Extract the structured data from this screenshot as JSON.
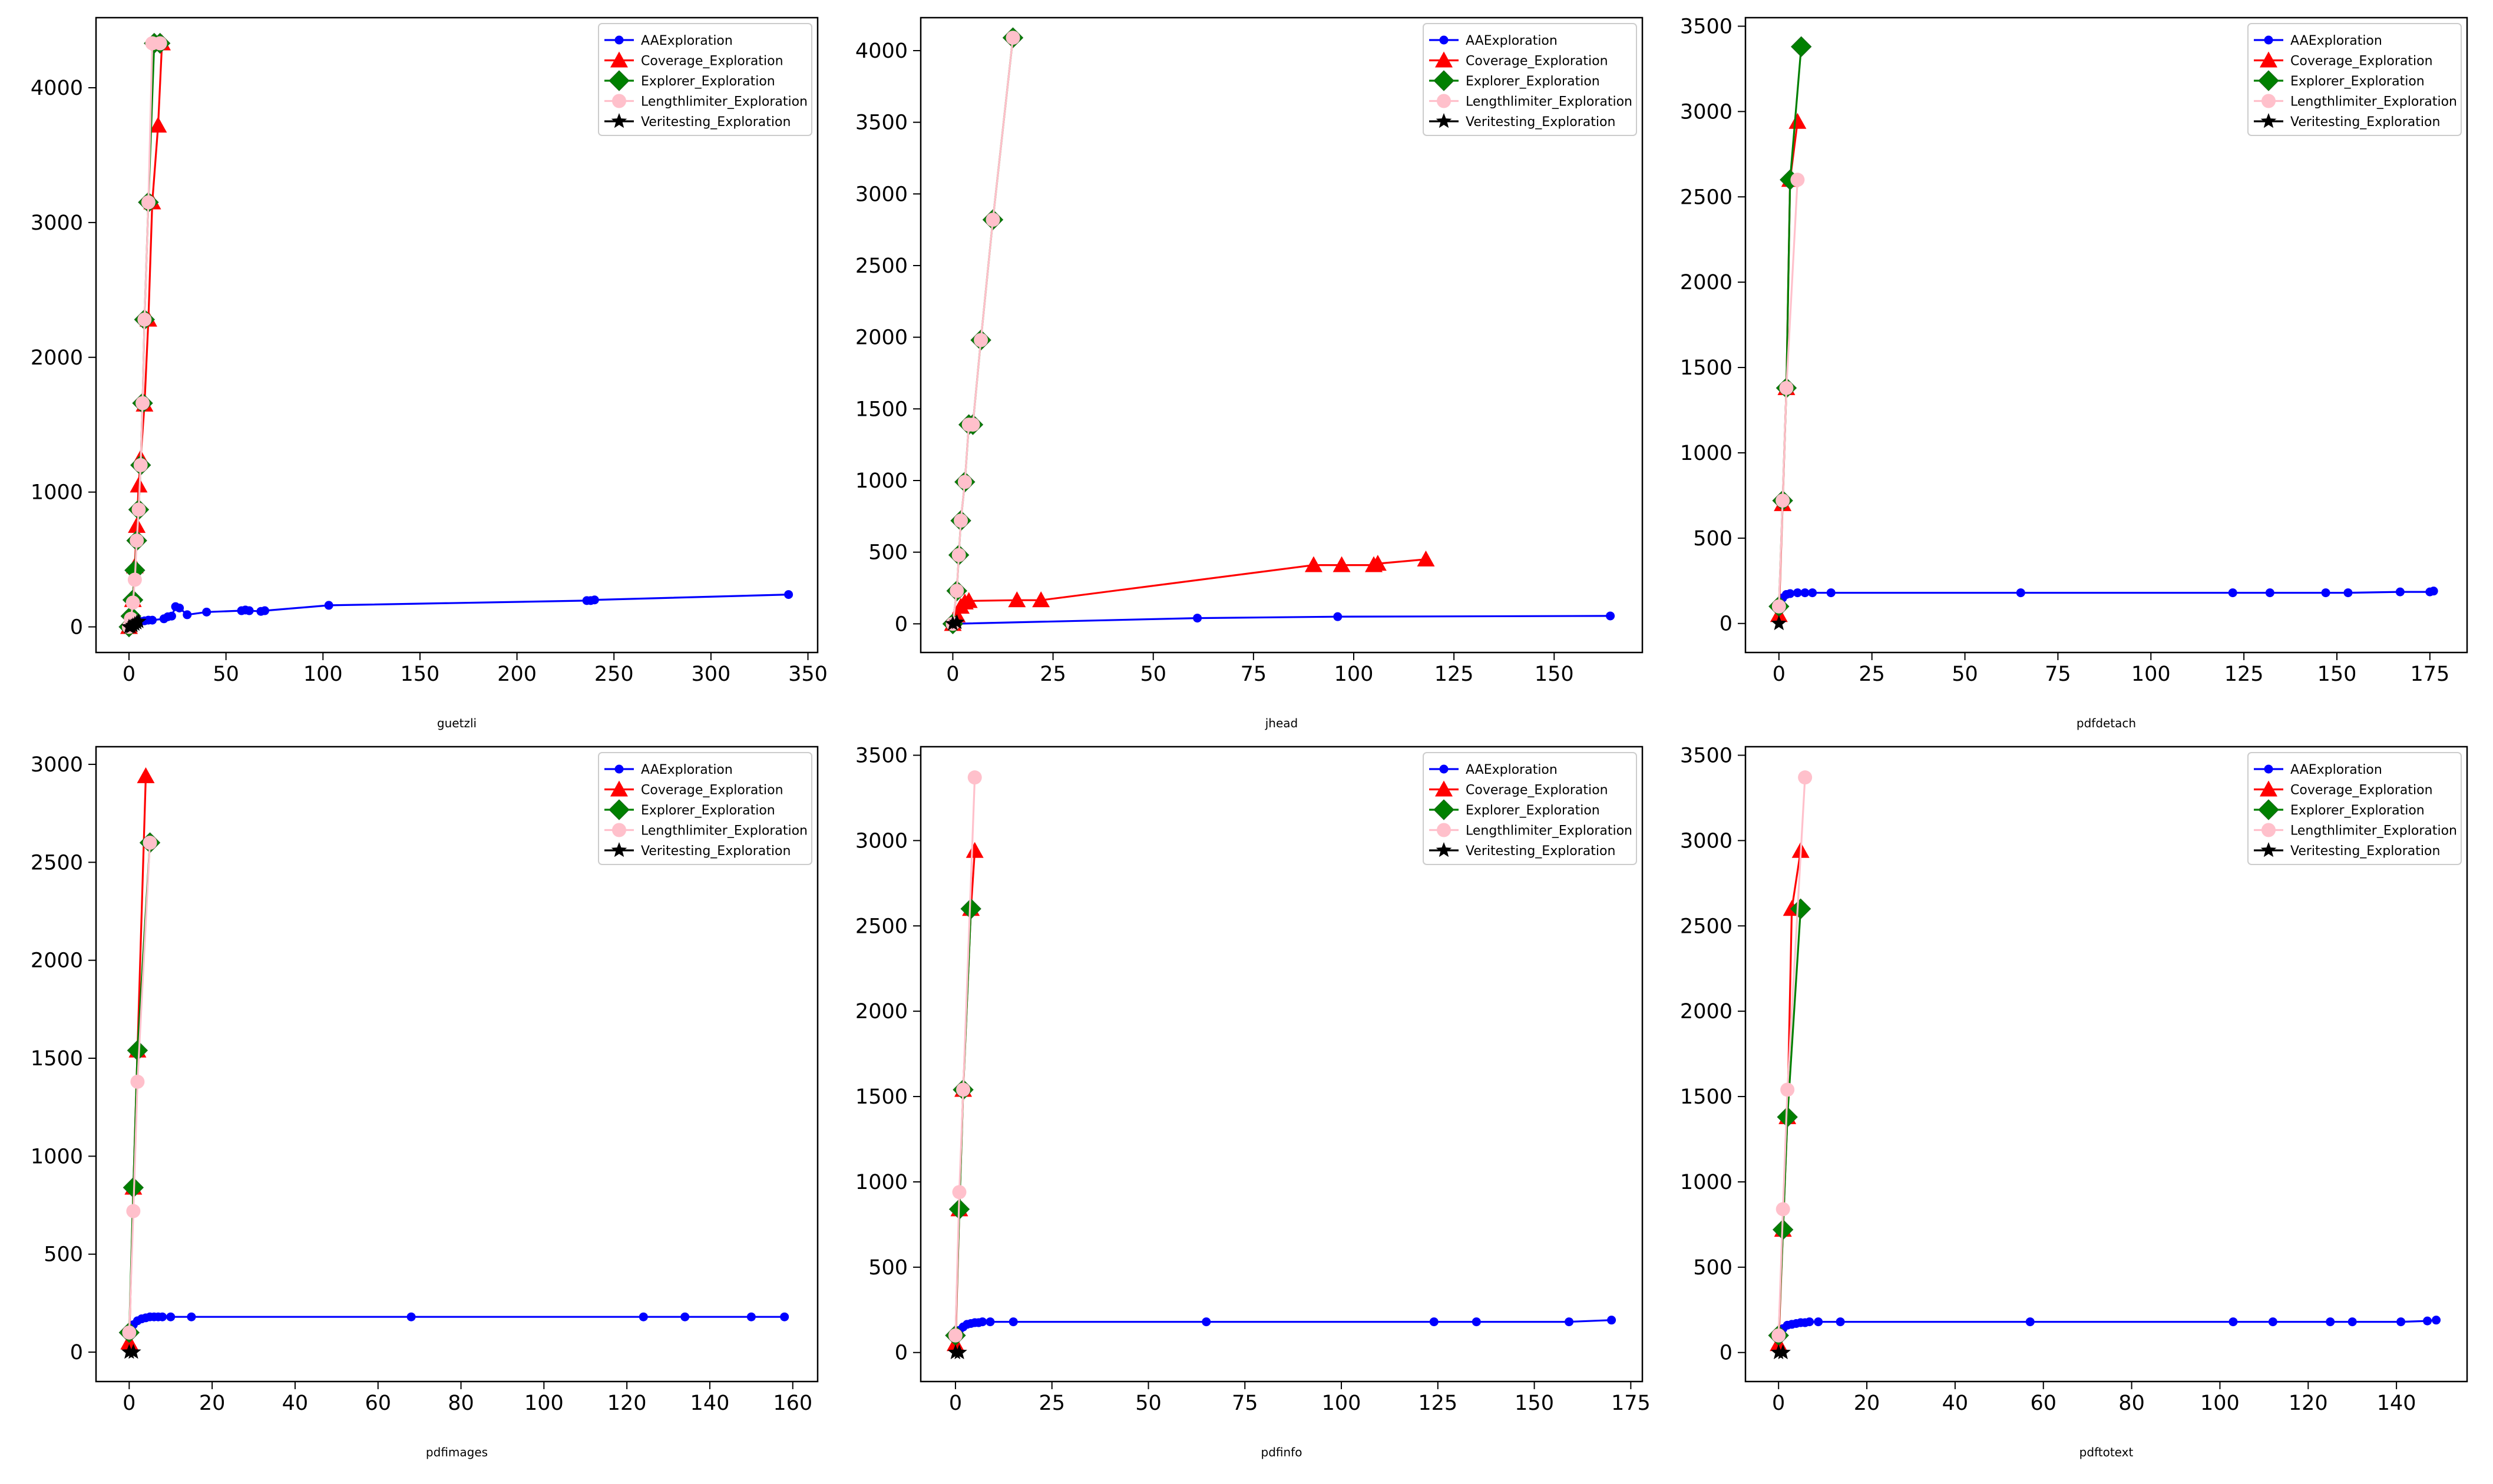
{
  "legend_labels": [
    "AAExploration",
    "Coverage_Exploration",
    "Explorer_Exploration",
    "Lengthlimiter_Exploration",
    "Veritesting_Exploration"
  ],
  "series_styles": [
    {
      "name": "AAExploration",
      "color": "#0000ff",
      "marker": "dot"
    },
    {
      "name": "Coverage_Exploration",
      "color": "#ff0000",
      "marker": "triangle"
    },
    {
      "name": "Explorer_Exploration",
      "color": "#008000",
      "marker": "diamond"
    },
    {
      "name": "Lengthlimiter_Exploration",
      "color": "#ffc0cb",
      "marker": "circle"
    },
    {
      "name": "Veritesting_Exploration",
      "color": "#000000",
      "marker": "star"
    }
  ],
  "chart_data": [
    {
      "type": "line",
      "xlabel": "guetzli",
      "ylabel": "",
      "xlim": [
        -17,
        355
      ],
      "ylim": [
        -190,
        4520
      ],
      "xticks": [
        0,
        50,
        100,
        150,
        200,
        250,
        300,
        350
      ],
      "yticks": [
        0,
        1000,
        2000,
        3000,
        4000
      ],
      "series": [
        {
          "name": "AAExploration",
          "x": [
            0,
            1,
            2,
            3,
            4,
            5,
            6,
            8,
            10,
            12,
            18,
            20,
            22,
            24,
            26,
            30,
            40,
            58,
            60,
            62,
            68,
            70,
            103,
            236,
            238,
            240,
            340
          ],
          "y": [
            0,
            5,
            10,
            20,
            30,
            35,
            40,
            45,
            50,
            50,
            60,
            75,
            80,
            150,
            140,
            90,
            110,
            120,
            125,
            120,
            115,
            120,
            160,
            195,
            195,
            200,
            240
          ]
        },
        {
          "name": "Coverage_Exploration",
          "x": [
            0,
            1,
            2,
            3,
            4,
            5,
            6,
            8,
            10,
            12,
            15,
            17
          ],
          "y": [
            0,
            50,
            200,
            450,
            750,
            1050,
            1250,
            1650,
            2280,
            3150,
            3720,
            4330
          ]
        },
        {
          "name": "Explorer_Exploration",
          "x": [
            0,
            1,
            2,
            3,
            4,
            5,
            6,
            7,
            8,
            10,
            13,
            16
          ],
          "y": [
            0,
            80,
            200,
            420,
            640,
            870,
            1200,
            1660,
            2280,
            3150,
            4330,
            4330
          ]
        },
        {
          "name": "Lengthlimiter_Exploration",
          "x": [
            0,
            1,
            2,
            3,
            4,
            5,
            6,
            7,
            8,
            10,
            12,
            16
          ],
          "y": [
            0,
            60,
            180,
            350,
            640,
            870,
            1200,
            1660,
            2280,
            3150,
            4330,
            4330
          ]
        },
        {
          "name": "Veritesting_Exploration",
          "x": [
            0,
            1,
            2,
            3,
            4,
            5
          ],
          "y": [
            0,
            0,
            10,
            20,
            30,
            40
          ]
        }
      ]
    },
    {
      "type": "line",
      "xlabel": "jhead",
      "ylabel": "",
      "xlim": [
        -8,
        172
      ],
      "ylim": [
        -200,
        4230
      ],
      "xticks": [
        0,
        25,
        50,
        75,
        100,
        125,
        150
      ],
      "yticks": [
        0,
        500,
        1000,
        1500,
        2000,
        2500,
        3000,
        3500,
        4000
      ],
      "series": [
        {
          "name": "AAExploration",
          "x": [
            0,
            61,
            96,
            164
          ],
          "y": [
            0,
            40,
            50,
            55
          ]
        },
        {
          "name": "Coverage_Exploration",
          "x": [
            0,
            1,
            2,
            3,
            4,
            16,
            22,
            90,
            97,
            105,
            106,
            118
          ],
          "y": [
            0,
            60,
            120,
            150,
            160,
            165,
            165,
            410,
            410,
            410,
            420,
            450
          ]
        },
        {
          "name": "Explorer_Exploration",
          "x": [
            0,
            1,
            1.5,
            2,
            3,
            4,
            5,
            7,
            10,
            15
          ],
          "y": [
            0,
            230,
            480,
            720,
            990,
            1390,
            1390,
            1980,
            2820,
            4090
          ]
        },
        {
          "name": "Lengthlimiter_Exploration",
          "x": [
            0,
            1,
            1.5,
            2,
            3,
            4,
            5,
            7,
            10,
            15
          ],
          "y": [
            0,
            230,
            480,
            720,
            990,
            1390,
            1390,
            1980,
            2820,
            4090
          ]
        },
        {
          "name": "Veritesting_Exploration",
          "x": [
            0,
            1
          ],
          "y": [
            0,
            10
          ]
        }
      ]
    },
    {
      "type": "line",
      "xlabel": "pdfdetach",
      "ylabel": "",
      "xlim": [
        -9,
        185
      ],
      "ylim": [
        -170,
        3550
      ],
      "xticks": [
        0,
        25,
        50,
        75,
        100,
        125,
        150,
        175
      ],
      "yticks": [
        0,
        500,
        1000,
        1500,
        2000,
        2500,
        3000,
        3500
      ],
      "series": [
        {
          "name": "AAExploration",
          "x": [
            0,
            1,
            2,
            3,
            5,
            7,
            9,
            14,
            65,
            122,
            132,
            147,
            153,
            167,
            175,
            176
          ],
          "y": [
            100,
            150,
            170,
            175,
            180,
            180,
            180,
            180,
            180,
            180,
            180,
            180,
            180,
            185,
            185,
            190
          ]
        },
        {
          "name": "Coverage_Exploration",
          "x": [
            0,
            1,
            2,
            3,
            5
          ],
          "y": [
            50,
            700,
            1380,
            2600,
            2940
          ]
        },
        {
          "name": "Explorer_Exploration",
          "x": [
            0,
            1,
            2,
            3,
            6
          ],
          "y": [
            100,
            720,
            1380,
            2600,
            3380
          ]
        },
        {
          "name": "Lengthlimiter_Exploration",
          "x": [
            0,
            1,
            2,
            5
          ],
          "y": [
            100,
            720,
            1380,
            2600
          ]
        },
        {
          "name": "Veritesting_Exploration",
          "x": [
            0
          ],
          "y": [
            0
          ]
        }
      ]
    },
    {
      "type": "line",
      "xlabel": "pdfimages",
      "ylabel": "",
      "xlim": [
        -8,
        166
      ],
      "ylim": [
        -150,
        3090
      ],
      "xticks": [
        0,
        20,
        40,
        60,
        80,
        100,
        120,
        140,
        160
      ],
      "yticks": [
        0,
        500,
        1000,
        1500,
        2000,
        2500,
        3000
      ],
      "series": [
        {
          "name": "AAExploration",
          "x": [
            0,
            1,
            2,
            3,
            4,
            5,
            6,
            7,
            8,
            10,
            15,
            68,
            124,
            134,
            150,
            158
          ],
          "y": [
            100,
            140,
            160,
            170,
            175,
            180,
            180,
            180,
            180,
            180,
            180,
            180,
            180,
            180,
            180,
            180
          ]
        },
        {
          "name": "Coverage_Exploration",
          "x": [
            0,
            1,
            2,
            4
          ],
          "y": [
            50,
            840,
            1540,
            2940
          ]
        },
        {
          "name": "Explorer_Exploration",
          "x": [
            0,
            1,
            2,
            5
          ],
          "y": [
            100,
            840,
            1540,
            2600
          ]
        },
        {
          "name": "Lengthlimiter_Exploration",
          "x": [
            0,
            1,
            2,
            5
          ],
          "y": [
            100,
            720,
            1380,
            2600
          ]
        },
        {
          "name": "Veritesting_Exploration",
          "x": [
            0,
            1
          ],
          "y": [
            0,
            0
          ]
        }
      ]
    },
    {
      "type": "line",
      "xlabel": "pdfinfo",
      "ylabel": "",
      "xlim": [
        -9,
        178
      ],
      "ylim": [
        -170,
        3550
      ],
      "xticks": [
        0,
        25,
        50,
        75,
        100,
        125,
        150,
        175
      ],
      "yticks": [
        0,
        500,
        1000,
        1500,
        2000,
        2500,
        3000,
        3500
      ],
      "series": [
        {
          "name": "AAExploration",
          "x": [
            0,
            1,
            2,
            3,
            4,
            5,
            6,
            7,
            9,
            15,
            65,
            124,
            135,
            159,
            170
          ],
          "y": [
            100,
            130,
            150,
            165,
            170,
            175,
            175,
            180,
            180,
            180,
            180,
            180,
            180,
            180,
            190
          ]
        },
        {
          "name": "Coverage_Exploration",
          "x": [
            0,
            1,
            2,
            4,
            5
          ],
          "y": [
            50,
            840,
            1540,
            2600,
            2940
          ]
        },
        {
          "name": "Explorer_Exploration",
          "x": [
            0,
            1,
            2,
            4
          ],
          "y": [
            100,
            840,
            1540,
            2600
          ]
        },
        {
          "name": "Lengthlimiter_Exploration",
          "x": [
            0,
            1,
            2,
            5
          ],
          "y": [
            100,
            940,
            1540,
            3370
          ]
        },
        {
          "name": "Veritesting_Exploration",
          "x": [
            0,
            1
          ],
          "y": [
            0,
            0
          ]
        }
      ]
    },
    {
      "type": "line",
      "xlabel": "pdftotext",
      "ylabel": "",
      "xlim": [
        -7.5,
        156
      ],
      "ylim": [
        -170,
        3550
      ],
      "xticks": [
        0,
        20,
        40,
        60,
        80,
        100,
        120,
        140
      ],
      "yticks": [
        0,
        500,
        1000,
        1500,
        2000,
        2500,
        3000,
        3500
      ],
      "series": [
        {
          "name": "AAExploration",
          "x": [
            0,
            1,
            2,
            3,
            4,
            5,
            6,
            7,
            9,
            14,
            57,
            103,
            112,
            125,
            130,
            141,
            147,
            149
          ],
          "y": [
            100,
            140,
            160,
            165,
            170,
            175,
            175,
            180,
            180,
            180,
            180,
            180,
            180,
            180,
            180,
            180,
            185,
            190
          ]
        },
        {
          "name": "Coverage_Exploration",
          "x": [
            0,
            1,
            2,
            3,
            5
          ],
          "y": [
            50,
            720,
            1380,
            2600,
            2940
          ]
        },
        {
          "name": "Explorer_Exploration",
          "x": [
            0,
            1,
            2,
            5
          ],
          "y": [
            100,
            720,
            1380,
            2600
          ]
        },
        {
          "name": "Lengthlimiter_Exploration",
          "x": [
            0,
            1,
            2,
            6
          ],
          "y": [
            100,
            840,
            1540,
            3370
          ]
        },
        {
          "name": "Veritesting_Exploration",
          "x": [
            0,
            1
          ],
          "y": [
            0,
            0
          ]
        }
      ]
    }
  ]
}
